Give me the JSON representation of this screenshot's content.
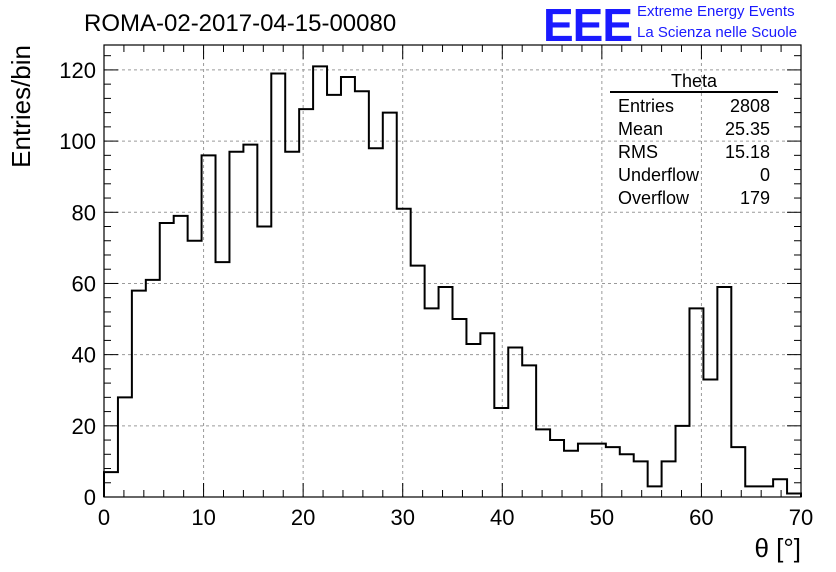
{
  "header": {
    "title": "ROMA-02-2017-04-15-00080",
    "logo_text": "EEE",
    "logo_line1": "Extreme Energy Events",
    "logo_line2": "La Scienza nelle Scuole",
    "logo_color": "#1a1aff"
  },
  "stats": {
    "title": "Theta",
    "rows": [
      {
        "label": "Entries",
        "value": "2808"
      },
      {
        "label": "Mean",
        "value": "25.35"
      },
      {
        "label": "RMS",
        "value": "15.18"
      },
      {
        "label": "Underflow",
        "value": "0"
      },
      {
        "label": "Overflow",
        "value": "179"
      }
    ]
  },
  "chart_data": {
    "type": "bar",
    "histogram": true,
    "xlabel": "θ [°]",
    "ylabel": "Entries/bin",
    "xlim": [
      0,
      70
    ],
    "ylim": [
      0,
      127
    ],
    "bin_width": 1.4,
    "values": [
      7,
      28,
      58,
      61,
      77,
      79,
      72,
      96,
      66,
      97,
      99,
      76,
      119,
      97,
      109,
      121,
      113,
      118,
      114,
      98,
      108,
      81,
      65,
      53,
      59,
      50,
      43,
      46,
      25,
      42,
      37,
      19,
      16,
      13,
      15,
      15,
      14,
      12,
      10,
      3,
      10,
      20,
      53,
      33,
      59,
      14,
      3,
      3,
      5,
      1
    ],
    "xticks": [
      0,
      10,
      20,
      30,
      40,
      50,
      60,
      70
    ],
    "yticks": [
      0,
      20,
      40,
      60,
      80,
      100,
      120
    ],
    "grid": true,
    "line_color": "#000000"
  }
}
